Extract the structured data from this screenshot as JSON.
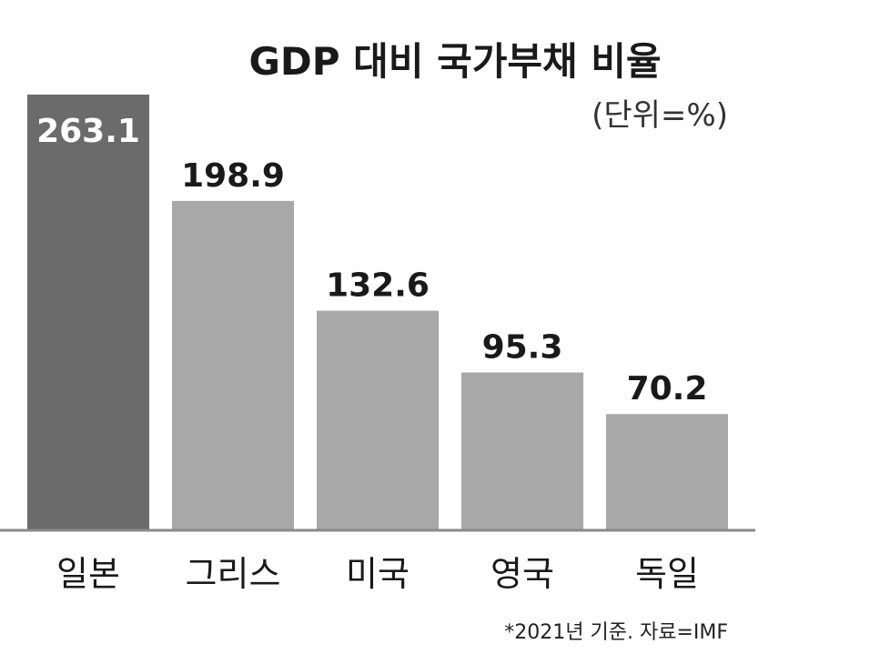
{
  "chart_data": {
    "type": "bar",
    "title": "GDP 대비 국가부채 비율",
    "unit_label": "(단위=%)",
    "categories": [
      "일본",
      "그리스",
      "미국",
      "영국",
      "독일"
    ],
    "values": [
      263.1,
      198.9,
      132.6,
      95.3,
      70.2
    ],
    "value_labels": [
      "263.1",
      "198.9",
      "132.6",
      "95.3",
      "70.2"
    ],
    "bar_colors": [
      "#6b6b6b",
      "#a8a8a8",
      "#a8a8a8",
      "#a8a8a8",
      "#a8a8a8"
    ],
    "highlight_label_color": "#ffffff",
    "label_color": "#1a1a1a",
    "ylim": [
      0,
      263.1
    ],
    "grid": false,
    "xlabel": "",
    "ylabel": "",
    "footnote": "*2021년 기준. 자료=IMF"
  }
}
